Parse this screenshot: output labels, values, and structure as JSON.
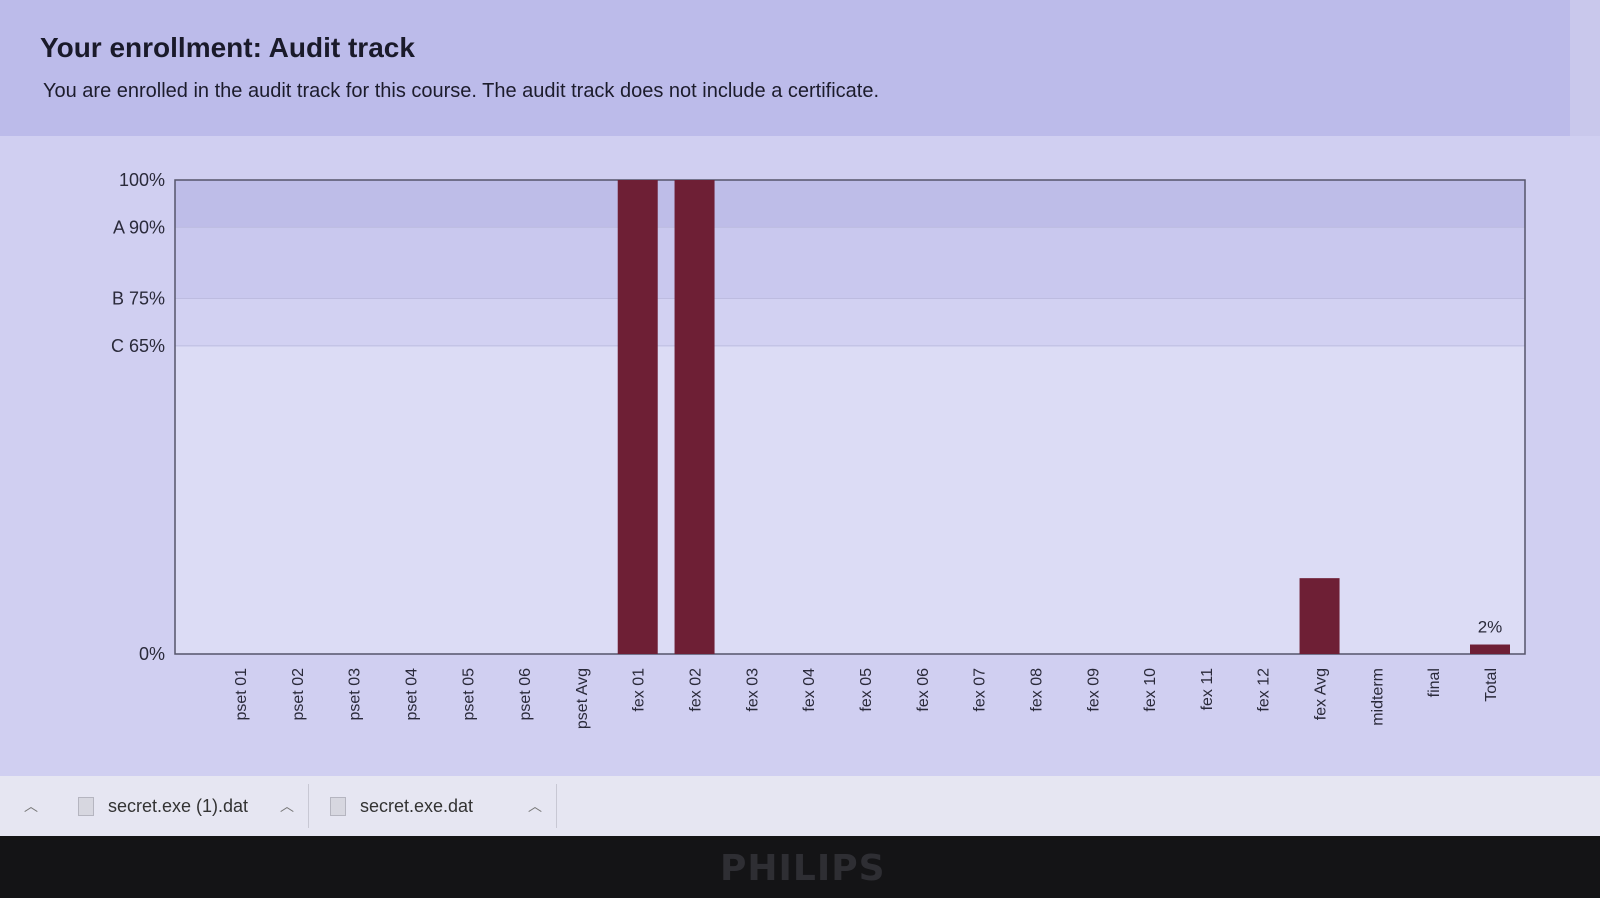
{
  "enrollment": {
    "title": "Your enrollment: Audit track",
    "message": "You are enrolled in the audit track for this course. The audit track does not include a certificate."
  },
  "chart_data": {
    "type": "bar",
    "categories": [
      "pset 01",
      "pset 02",
      "pset 03",
      "pset 04",
      "pset 05",
      "pset 06",
      "pset Avg",
      "fex 01",
      "fex 02",
      "fex 03",
      "fex 04",
      "fex 05",
      "fex 06",
      "fex 07",
      "fex 08",
      "fex 09",
      "fex 10",
      "fex 11",
      "fex 12",
      "fex Avg",
      "midterm",
      "final",
      "Total"
    ],
    "values": [
      0,
      0,
      0,
      0,
      0,
      0,
      0,
      100,
      100,
      0,
      0,
      0,
      0,
      0,
      0,
      0,
      0,
      0,
      0,
      16,
      0,
      0,
      2
    ],
    "ylim": [
      0,
      100
    ],
    "y_tick_labels": [
      {
        "value": 100,
        "label": "100%"
      },
      {
        "value": 90,
        "label": "A 90%"
      },
      {
        "value": 75,
        "label": "B 75%"
      },
      {
        "value": 65,
        "label": "C 65%"
      },
      {
        "value": 0,
        "label": "0%"
      }
    ],
    "grade_bands": [
      {
        "from": 90,
        "to": 100,
        "color": "#bebde8"
      },
      {
        "from": 75,
        "to": 90,
        "color": "#c9c8ee"
      },
      {
        "from": 65,
        "to": 75,
        "color": "#d2d1f2"
      },
      {
        "from": 0,
        "to": 65,
        "color": "#dcdcf5"
      }
    ],
    "data_labels": [
      {
        "category": "Total",
        "label": "2%"
      }
    ],
    "bar_color": "#6e1f35"
  },
  "downloads": {
    "items": [
      {
        "name": "secret.exe (1).dat"
      },
      {
        "name": "secret.exe.dat"
      }
    ]
  },
  "monitor": {
    "brand": "PHILIPS"
  }
}
